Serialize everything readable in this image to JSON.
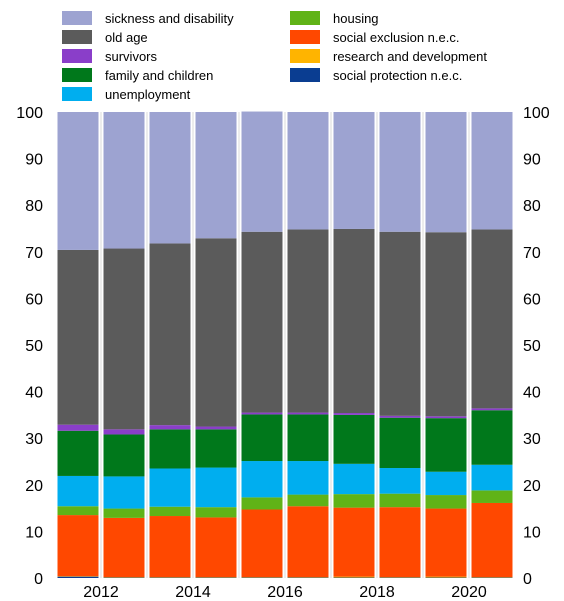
{
  "chart_data": {
    "type": "bar",
    "stacked": true,
    "stack_normalized_percent": true,
    "ylim": [
      0,
      100
    ],
    "yticks": [
      0,
      10,
      20,
      30,
      40,
      50,
      60,
      70,
      80,
      90,
      100
    ],
    "y_axis_both_sides": true,
    "grid": "vertical gridlines between bars",
    "legend_position": "top",
    "categories": [
      "2011",
      "2012",
      "2013",
      "2014",
      "2015",
      "2016",
      "2017",
      "2018",
      "2019",
      "2020"
    ],
    "x_tick_labels": [
      "",
      "2012",
      "",
      "2014",
      "",
      "2016",
      "",
      "2018",
      "",
      "2020"
    ],
    "series": [
      {
        "name": "social protection n.e.c.",
        "color": "#0a3d91",
        "values": [
          0.3,
          0.1,
          0.1,
          0.1,
          0.1,
          0.1,
          0.1,
          0.1,
          0.1,
          0.1
        ]
      },
      {
        "name": "research and development",
        "color": "#ffb400",
        "values": [
          0.1,
          0.1,
          0.1,
          0.1,
          0.1,
          0.1,
          0.2,
          0.1,
          0.2,
          0.1
        ]
      },
      {
        "name": "social exclusion n.e.c.",
        "color": "#ff4800",
        "values": [
          13.1,
          12.7,
          13.1,
          12.8,
          14.5,
          15.2,
          14.8,
          15.0,
          14.6,
          15.9
        ]
      },
      {
        "name": "housing",
        "color": "#60b317",
        "values": [
          1.9,
          2.0,
          2.0,
          2.2,
          2.6,
          2.5,
          2.9,
          2.9,
          2.9,
          2.7
        ]
      },
      {
        "name": "unemployment",
        "color": "#00aeef",
        "values": [
          6.5,
          6.9,
          8.2,
          8.5,
          7.8,
          7.2,
          6.5,
          5.5,
          5.0,
          5.5
        ]
      },
      {
        "name": "family and children",
        "color": "#00781b",
        "values": [
          9.7,
          9.0,
          8.4,
          8.2,
          10.0,
          10.0,
          10.5,
          10.8,
          11.5,
          11.7
        ]
      },
      {
        "name": "survivors",
        "color": "#8a3ec9",
        "values": [
          1.3,
          1.1,
          0.9,
          0.6,
          0.4,
          0.4,
          0.4,
          0.4,
          0.4,
          0.4
        ]
      },
      {
        "name": "old age",
        "color": "#5b5b5b",
        "values": [
          37.5,
          38.8,
          39.0,
          40.4,
          38.8,
          39.3,
          39.5,
          39.5,
          39.5,
          38.4
        ]
      },
      {
        "name": "sickness and disability",
        "color": "#9da3d1",
        "values": [
          29.6,
          29.3,
          28.2,
          27.1,
          25.8,
          25.2,
          25.1,
          25.7,
          25.8,
          25.2
        ]
      }
    ],
    "legend": {
      "columns": [
        [
          "sickness and disability",
          "old age",
          "survivors",
          "family and children",
          "unemployment"
        ],
        [
          "housing",
          "social exclusion n.e.c.",
          "research and development",
          "social protection n.e.c."
        ]
      ]
    }
  }
}
